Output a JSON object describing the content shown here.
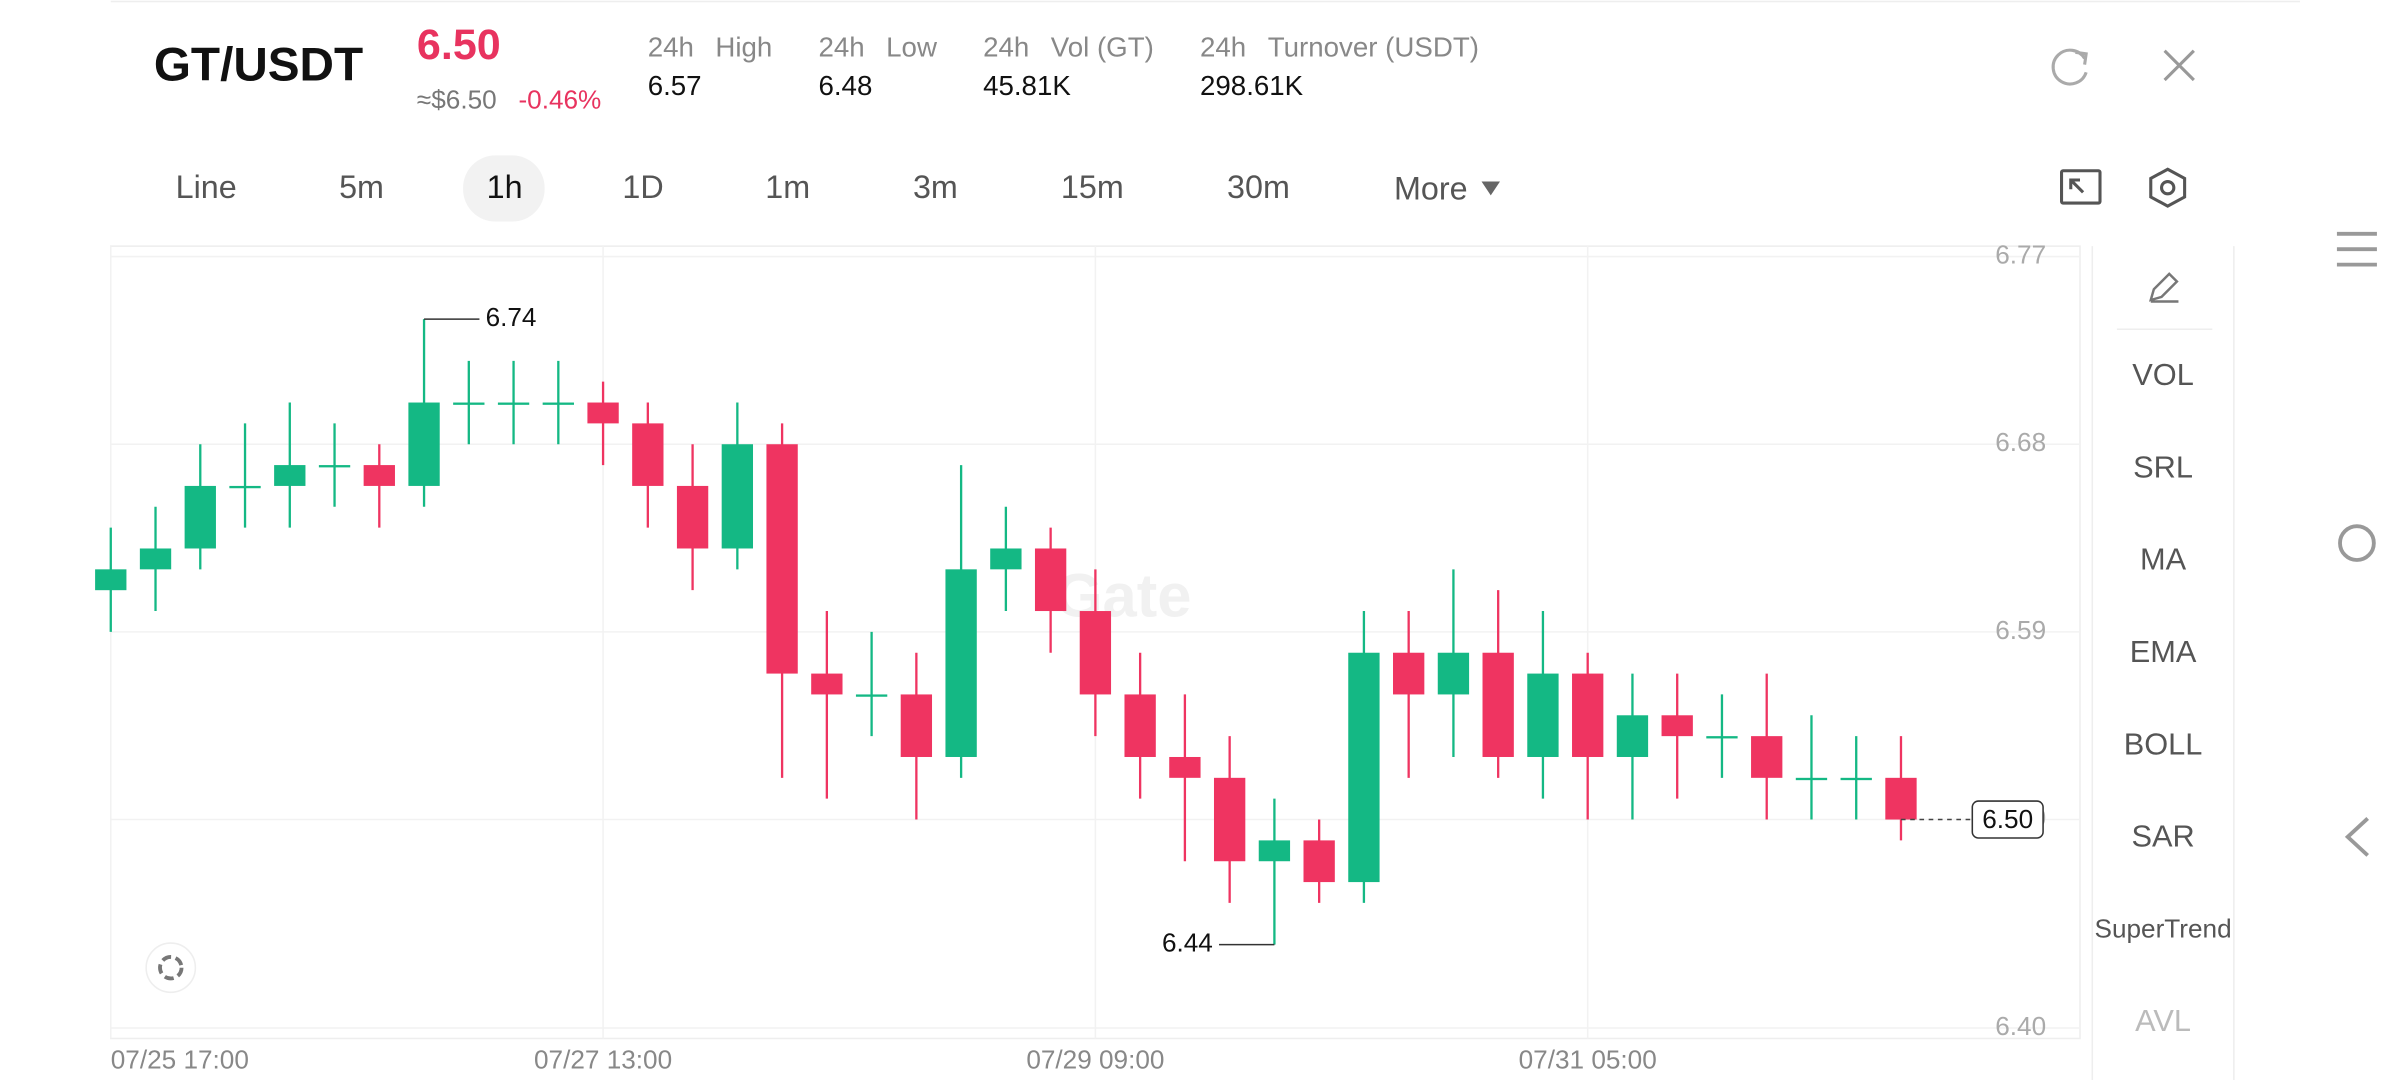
{
  "header": {
    "pair": "GT/USDT",
    "last_price": "6.50",
    "fiat_price": "≈$6.50",
    "change": "-0.46%",
    "stats": [
      {
        "period": "24h",
        "label": "High",
        "value": "6.57"
      },
      {
        "period": "24h",
        "label": "Low",
        "value": "6.48"
      },
      {
        "period": "24h",
        "label": "Vol (GT)",
        "value": "45.81K"
      },
      {
        "period": "24h",
        "label": "Turnover (USDT)",
        "value": "298.61K"
      }
    ]
  },
  "toolbar": {
    "intervals": [
      "Line",
      "5m",
      "1h",
      "1D",
      "1m",
      "3m",
      "15m",
      "30m"
    ],
    "active_index": 2,
    "more": "More"
  },
  "indicators": [
    "VOL",
    "SRL",
    "MA",
    "EMA",
    "BOLL",
    "SAR",
    "SuperTrend",
    "AVL"
  ],
  "watermark": "Gate",
  "chart_data": {
    "type": "candlestick",
    "x": [
      0,
      4,
      8,
      12,
      16,
      20,
      24,
      28,
      32,
      36,
      40,
      44,
      48,
      52,
      56,
      60,
      64,
      68,
      72,
      76,
      80,
      84,
      88,
      92,
      96,
      100,
      104,
      108,
      112,
      116,
      120,
      124,
      128,
      132,
      136,
      140,
      144,
      148,
      152,
      156,
      160
    ],
    "open": [
      6.61,
      6.62,
      6.63,
      6.66,
      6.66,
      6.67,
      6.67,
      6.66,
      6.7,
      6.7,
      6.7,
      6.7,
      6.69,
      6.66,
      6.63,
      6.68,
      6.57,
      6.56,
      6.56,
      6.53,
      6.62,
      6.63,
      6.6,
      6.56,
      6.53,
      6.52,
      6.48,
      6.49,
      6.47,
      6.58,
      6.56,
      6.58,
      6.53,
      6.57,
      6.53,
      6.55,
      6.54,
      6.54,
      6.52,
      6.52,
      6.52
    ],
    "high": [
      6.64,
      6.65,
      6.68,
      6.69,
      6.7,
      6.69,
      6.68,
      6.74,
      6.72,
      6.72,
      6.72,
      6.71,
      6.7,
      6.68,
      6.7,
      6.69,
      6.6,
      6.59,
      6.58,
      6.67,
      6.65,
      6.64,
      6.62,
      6.58,
      6.56,
      6.54,
      6.51,
      6.5,
      6.6,
      6.6,
      6.62,
      6.61,
      6.6,
      6.58,
      6.57,
      6.57,
      6.56,
      6.57,
      6.55,
      6.54,
      6.54
    ],
    "low": [
      6.59,
      6.6,
      6.62,
      6.64,
      6.64,
      6.65,
      6.64,
      6.65,
      6.68,
      6.68,
      6.68,
      6.67,
      6.64,
      6.61,
      6.62,
      6.52,
      6.51,
      6.54,
      6.5,
      6.52,
      6.6,
      6.58,
      6.54,
      6.51,
      6.48,
      6.46,
      6.44,
      6.46,
      6.46,
      6.52,
      6.53,
      6.52,
      6.51,
      6.5,
      6.5,
      6.51,
      6.52,
      6.5,
      6.5,
      6.5,
      6.49
    ],
    "close": [
      6.62,
      6.63,
      6.66,
      6.66,
      6.67,
      6.67,
      6.66,
      6.7,
      6.7,
      6.7,
      6.7,
      6.69,
      6.66,
      6.63,
      6.68,
      6.57,
      6.56,
      6.56,
      6.53,
      6.62,
      6.63,
      6.6,
      6.56,
      6.53,
      6.52,
      6.48,
      6.49,
      6.47,
      6.58,
      6.56,
      6.58,
      6.53,
      6.57,
      6.53,
      6.55,
      6.54,
      6.54,
      6.52,
      6.52,
      6.52,
      6.5
    ],
    "up_color": "#14b884",
    "down_color": "#ef3461",
    "xlim": [
      0,
      176
    ],
    "xticks": [
      {
        "value": 0,
        "label": "07/25 17:00"
      },
      {
        "value": 44,
        "label": "07/27 13:00"
      },
      {
        "value": 88,
        "label": "07/29 09:00"
      },
      {
        "value": 132,
        "label": "07/31 05:00"
      }
    ],
    "ylim": [
      6.395,
      6.775
    ],
    "yticks": [
      {
        "value": 6.4,
        "label": "6.40"
      },
      {
        "value": 6.5,
        "label": "6.50"
      },
      6.59,
      6.68,
      6.77
    ],
    "grid": true,
    "last_price": {
      "value": 6.5,
      "label": "6.50"
    },
    "annotations": [
      {
        "index": 7,
        "field": "high"
      },
      {
        "index": 26,
        "field": "low"
      }
    ]
  }
}
